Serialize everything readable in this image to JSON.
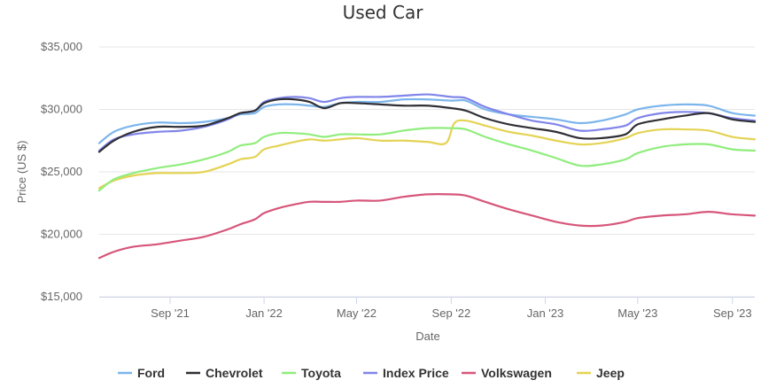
{
  "chart_data": {
    "type": "line",
    "title": "Used Car",
    "xlabel": "Date",
    "ylabel": "Price (US $)",
    "ylim": [
      15000,
      35000
    ],
    "xlim": [
      "2021-06-01",
      "2023-09-30"
    ],
    "grid": "horizontal",
    "legend_position": "bottom",
    "y_ticks": [
      {
        "value": 15000,
        "label": "$15,000"
      },
      {
        "value": 20000,
        "label": "$20,000"
      },
      {
        "value": 25000,
        "label": "$25,000"
      },
      {
        "value": 30000,
        "label": "$30,000"
      },
      {
        "value": 35000,
        "label": "$35,000"
      }
    ],
    "x_ticks": [
      {
        "date": "2021-09-01",
        "label": "Sep '21"
      },
      {
        "date": "2022-01-01",
        "label": "Jan '22"
      },
      {
        "date": "2022-05-01",
        "label": "May '22"
      },
      {
        "date": "2022-09-01",
        "label": "Sep '22"
      },
      {
        "date": "2023-01-01",
        "label": "Jan '23"
      },
      {
        "date": "2023-05-01",
        "label": "May '23"
      },
      {
        "date": "2023-09-01",
        "label": "Sep '23"
      }
    ],
    "series": [
      {
        "name": "Ford",
        "color": "#7cb5ec",
        "points": [
          [
            "2021-06-01",
            27300
          ],
          [
            "2021-06-20",
            28200
          ],
          [
            "2021-07-15",
            28700
          ],
          [
            "2021-08-15",
            28950
          ],
          [
            "2021-09-15",
            28900
          ],
          [
            "2021-10-15",
            29000
          ],
          [
            "2021-11-15",
            29300
          ],
          [
            "2021-12-01",
            29600
          ],
          [
            "2021-12-20",
            29700
          ],
          [
            "2022-01-01",
            30200
          ],
          [
            "2022-01-20",
            30400
          ],
          [
            "2022-02-10",
            30400
          ],
          [
            "2022-03-01",
            30300
          ],
          [
            "2022-03-20",
            30200
          ],
          [
            "2022-04-10",
            30500
          ],
          [
            "2022-05-01",
            30600
          ],
          [
            "2022-06-01",
            30600
          ],
          [
            "2022-07-01",
            30800
          ],
          [
            "2022-08-01",
            30800
          ],
          [
            "2022-09-01",
            30700
          ],
          [
            "2022-09-20",
            30700
          ],
          [
            "2022-10-15",
            30000
          ],
          [
            "2022-11-15",
            29600
          ],
          [
            "2022-12-15",
            29400
          ],
          [
            "2023-01-15",
            29200
          ],
          [
            "2023-02-15",
            28900
          ],
          [
            "2023-03-15",
            29100
          ],
          [
            "2023-04-15",
            29600
          ],
          [
            "2023-05-01",
            30000
          ],
          [
            "2023-06-01",
            30300
          ],
          [
            "2023-07-01",
            30400
          ],
          [
            "2023-08-01",
            30300
          ],
          [
            "2023-09-01",
            29700
          ],
          [
            "2023-09-30",
            29500
          ]
        ]
      },
      {
        "name": "Chevrolet",
        "color": "#2f2f35",
        "points": [
          [
            "2021-06-01",
            26600
          ],
          [
            "2021-06-20",
            27500
          ],
          [
            "2021-07-15",
            28200
          ],
          [
            "2021-08-15",
            28600
          ],
          [
            "2021-09-15",
            28600
          ],
          [
            "2021-10-15",
            28700
          ],
          [
            "2021-11-15",
            29300
          ],
          [
            "2021-12-01",
            29700
          ],
          [
            "2021-12-20",
            29900
          ],
          [
            "2022-01-01",
            30500
          ],
          [
            "2022-01-20",
            30800
          ],
          [
            "2022-02-10",
            30800
          ],
          [
            "2022-03-01",
            30600
          ],
          [
            "2022-03-20",
            30100
          ],
          [
            "2022-04-10",
            30500
          ],
          [
            "2022-05-01",
            30500
          ],
          [
            "2022-06-01",
            30400
          ],
          [
            "2022-07-01",
            30300
          ],
          [
            "2022-08-01",
            30300
          ],
          [
            "2022-09-01",
            30100
          ],
          [
            "2022-09-20",
            29900
          ],
          [
            "2022-10-15",
            29300
          ],
          [
            "2022-11-15",
            28800
          ],
          [
            "2022-12-15",
            28500
          ],
          [
            "2023-01-15",
            28200
          ],
          [
            "2023-02-15",
            27700
          ],
          [
            "2023-03-15",
            27700
          ],
          [
            "2023-04-15",
            28000
          ],
          [
            "2023-05-01",
            28800
          ],
          [
            "2023-06-01",
            29200
          ],
          [
            "2023-07-01",
            29500
          ],
          [
            "2023-08-01",
            29700
          ],
          [
            "2023-09-01",
            29200
          ],
          [
            "2023-09-30",
            29000
          ]
        ]
      },
      {
        "name": "Toyota",
        "color": "#90ed7d",
        "points": [
          [
            "2021-06-01",
            23500
          ],
          [
            "2021-06-20",
            24400
          ],
          [
            "2021-07-15",
            24900
          ],
          [
            "2021-08-15",
            25300
          ],
          [
            "2021-09-15",
            25600
          ],
          [
            "2021-10-15",
            26000
          ],
          [
            "2021-11-15",
            26600
          ],
          [
            "2021-12-01",
            27100
          ],
          [
            "2021-12-20",
            27300
          ],
          [
            "2022-01-01",
            27800
          ],
          [
            "2022-01-20",
            28100
          ],
          [
            "2022-02-10",
            28100
          ],
          [
            "2022-03-01",
            28000
          ],
          [
            "2022-03-20",
            27800
          ],
          [
            "2022-04-10",
            28000
          ],
          [
            "2022-05-01",
            28000
          ],
          [
            "2022-06-01",
            28000
          ],
          [
            "2022-07-01",
            28300
          ],
          [
            "2022-08-01",
            28500
          ],
          [
            "2022-09-01",
            28500
          ],
          [
            "2022-09-20",
            28400
          ],
          [
            "2022-10-15",
            27800
          ],
          [
            "2022-11-15",
            27200
          ],
          [
            "2022-12-15",
            26700
          ],
          [
            "2023-01-15",
            26100
          ],
          [
            "2023-02-15",
            25500
          ],
          [
            "2023-03-15",
            25600
          ],
          [
            "2023-04-15",
            26000
          ],
          [
            "2023-05-01",
            26500
          ],
          [
            "2023-06-01",
            27000
          ],
          [
            "2023-07-01",
            27200
          ],
          [
            "2023-08-01",
            27200
          ],
          [
            "2023-09-01",
            26800
          ],
          [
            "2023-09-30",
            26700
          ]
        ]
      },
      {
        "name": "Index Price",
        "color": "#8085e9",
        "points": [
          [
            "2021-06-01",
            26700
          ],
          [
            "2021-06-20",
            27600
          ],
          [
            "2021-07-15",
            28000
          ],
          [
            "2021-08-15",
            28200
          ],
          [
            "2021-09-15",
            28300
          ],
          [
            "2021-10-15",
            28600
          ],
          [
            "2021-11-15",
            29200
          ],
          [
            "2021-12-01",
            29700
          ],
          [
            "2021-12-20",
            29900
          ],
          [
            "2022-01-01",
            30600
          ],
          [
            "2022-01-20",
            30900
          ],
          [
            "2022-02-10",
            31000
          ],
          [
            "2022-03-01",
            30900
          ],
          [
            "2022-03-20",
            30600
          ],
          [
            "2022-04-10",
            30900
          ],
          [
            "2022-05-01",
            31000
          ],
          [
            "2022-06-01",
            31000
          ],
          [
            "2022-07-01",
            31100
          ],
          [
            "2022-08-01",
            31200
          ],
          [
            "2022-09-01",
            31000
          ],
          [
            "2022-09-20",
            30900
          ],
          [
            "2022-10-15",
            30200
          ],
          [
            "2022-11-15",
            29600
          ],
          [
            "2022-12-15",
            29100
          ],
          [
            "2023-01-15",
            28800
          ],
          [
            "2023-02-15",
            28300
          ],
          [
            "2023-03-15",
            28400
          ],
          [
            "2023-04-15",
            28700
          ],
          [
            "2023-05-01",
            29300
          ],
          [
            "2023-06-01",
            29700
          ],
          [
            "2023-07-01",
            29800
          ],
          [
            "2023-08-01",
            29700
          ],
          [
            "2023-09-01",
            29300
          ],
          [
            "2023-09-30",
            29100
          ]
        ]
      },
      {
        "name": "Volkswagen",
        "color": "#d6567a",
        "points": [
          [
            "2021-06-01",
            18100
          ],
          [
            "2021-06-20",
            18600
          ],
          [
            "2021-07-15",
            19000
          ],
          [
            "2021-08-15",
            19200
          ],
          [
            "2021-09-15",
            19500
          ],
          [
            "2021-10-15",
            19800
          ],
          [
            "2021-11-15",
            20400
          ],
          [
            "2021-12-01",
            20800
          ],
          [
            "2021-12-20",
            21200
          ],
          [
            "2022-01-01",
            21700
          ],
          [
            "2022-01-20",
            22100
          ],
          [
            "2022-02-10",
            22400
          ],
          [
            "2022-03-01",
            22600
          ],
          [
            "2022-03-20",
            22600
          ],
          [
            "2022-04-10",
            22600
          ],
          [
            "2022-05-01",
            22700
          ],
          [
            "2022-06-01",
            22700
          ],
          [
            "2022-07-01",
            23000
          ],
          [
            "2022-08-01",
            23200
          ],
          [
            "2022-09-01",
            23200
          ],
          [
            "2022-09-20",
            23100
          ],
          [
            "2022-10-15",
            22600
          ],
          [
            "2022-11-15",
            22000
          ],
          [
            "2022-12-15",
            21500
          ],
          [
            "2023-01-15",
            21000
          ],
          [
            "2023-02-15",
            20700
          ],
          [
            "2023-03-15",
            20700
          ],
          [
            "2023-04-15",
            21000
          ],
          [
            "2023-05-01",
            21300
          ],
          [
            "2023-06-01",
            21500
          ],
          [
            "2023-07-01",
            21600
          ],
          [
            "2023-08-01",
            21800
          ],
          [
            "2023-09-01",
            21600
          ],
          [
            "2023-09-30",
            21500
          ]
        ]
      },
      {
        "name": "Jeep",
        "color": "#e4d354",
        "points": [
          [
            "2021-06-01",
            23700
          ],
          [
            "2021-06-20",
            24300
          ],
          [
            "2021-07-15",
            24700
          ],
          [
            "2021-08-15",
            24900
          ],
          [
            "2021-09-15",
            24900
          ],
          [
            "2021-10-15",
            25000
          ],
          [
            "2021-11-15",
            25600
          ],
          [
            "2021-12-01",
            26000
          ],
          [
            "2021-12-20",
            26200
          ],
          [
            "2022-01-01",
            26800
          ],
          [
            "2022-01-20",
            27100
          ],
          [
            "2022-02-10",
            27400
          ],
          [
            "2022-03-01",
            27600
          ],
          [
            "2022-03-20",
            27500
          ],
          [
            "2022-04-10",
            27600
          ],
          [
            "2022-05-01",
            27700
          ],
          [
            "2022-06-01",
            27500
          ],
          [
            "2022-07-01",
            27500
          ],
          [
            "2022-08-01",
            27400
          ],
          [
            "2022-08-25",
            27300
          ],
          [
            "2022-09-05",
            28900
          ],
          [
            "2022-09-20",
            29100
          ],
          [
            "2022-10-15",
            28700
          ],
          [
            "2022-11-15",
            28200
          ],
          [
            "2022-12-15",
            27900
          ],
          [
            "2023-01-15",
            27500
          ],
          [
            "2023-02-15",
            27200
          ],
          [
            "2023-03-15",
            27300
          ],
          [
            "2023-04-15",
            27700
          ],
          [
            "2023-05-01",
            28100
          ],
          [
            "2023-06-01",
            28400
          ],
          [
            "2023-07-01",
            28400
          ],
          [
            "2023-08-01",
            28300
          ],
          [
            "2023-09-01",
            27800
          ],
          [
            "2023-09-30",
            27600
          ]
        ]
      }
    ]
  }
}
